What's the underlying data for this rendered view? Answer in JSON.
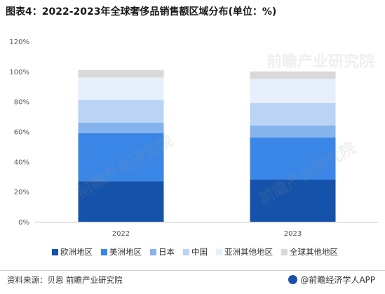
{
  "title": "图表4：2022-2023年全球奢侈品销售额区域分布(单位：%)",
  "source": "资料来源：贝恩 前瞻产业研究院",
  "brand": "@前瞻经济学人APP",
  "watermarks": [
    "前瞻产业研究院",
    "前瞻产业研究院",
    "前瞻产业研究院"
  ],
  "chart_data": {
    "type": "bar",
    "stacked": true,
    "title": "图表4：2022-2023年全球奢侈品销售额区域分布(单位：%)",
    "xlabel": "",
    "ylabel": "",
    "categories": [
      "2022",
      "2023"
    ],
    "ylim": [
      0,
      120
    ],
    "yticks": [
      0,
      20,
      40,
      60,
      80,
      100,
      120
    ],
    "ytick_labels": [
      "0%",
      "20%",
      "40%",
      "60%",
      "80%",
      "100%",
      "120%"
    ],
    "grid": false,
    "legend_position": "bottom",
    "series": [
      {
        "name": "欧洲地区",
        "color": "#1552aa",
        "values": [
          27,
          28
        ]
      },
      {
        "name": "美洲地区",
        "color": "#3a86e6",
        "values": [
          32,
          28
        ]
      },
      {
        "name": "日本",
        "color": "#85b3ec",
        "values": [
          7,
          8
        ]
      },
      {
        "name": "中国",
        "color": "#b9d4f4",
        "values": [
          15,
          15
        ]
      },
      {
        "name": "亚洲其他地区",
        "color": "#e6effb",
        "values": [
          15,
          16
        ]
      },
      {
        "name": "全球其他地区",
        "color": "#d9d9d9",
        "values": [
          5,
          5
        ]
      }
    ]
  }
}
